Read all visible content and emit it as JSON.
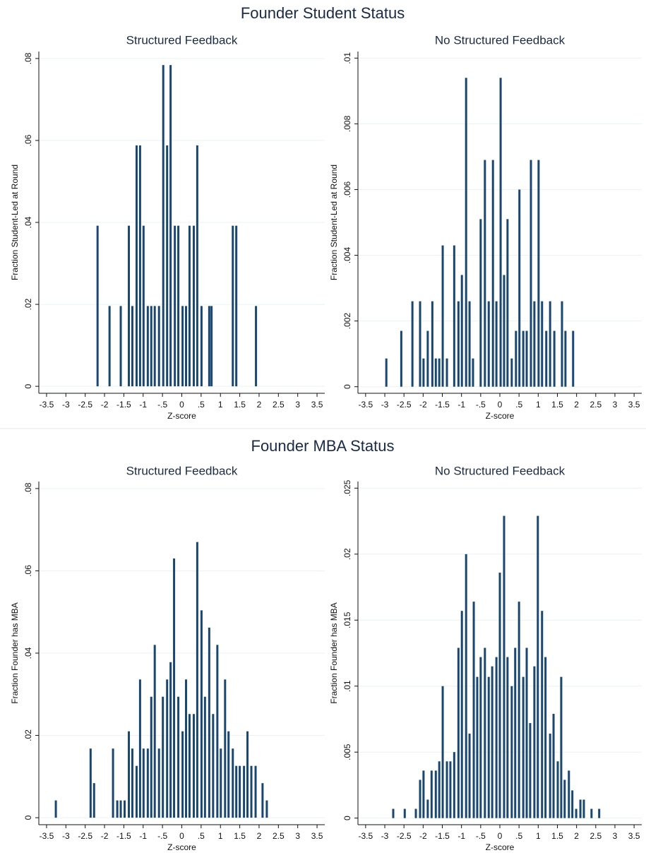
{
  "section_titles": [
    "Founder Student Status",
    "Founder MBA Status"
  ],
  "chart_data": [
    {
      "type": "bar",
      "title": "Structured Feedback",
      "xlabel": "Z-score",
      "ylabel": "Fraction Student-Led at Round",
      "color": "#1a476f",
      "grid": true,
      "x": [
        -2.18,
        -1.87,
        -1.58,
        -1.37,
        -1.28,
        -1.17,
        -1.08,
        -0.99,
        -0.88,
        -0.79,
        -0.7,
        -0.59,
        -0.48,
        -0.38,
        -0.29,
        -0.18,
        -0.09,
        0.02,
        0.11,
        0.2,
        0.31,
        0.4,
        0.51,
        0.71,
        0.77,
        1.32,
        1.41,
        1.92
      ],
      "values": [
        0.0392,
        0.0196,
        0.0196,
        0.0392,
        0.0196,
        0.0588,
        0.0588,
        0.0392,
        0.0196,
        0.0196,
        0.0196,
        0.0196,
        0.0784,
        0.0588,
        0.0784,
        0.0392,
        0.0392,
        0.0196,
        0.0196,
        0.0392,
        0.0392,
        0.0588,
        0.0196,
        0.0196,
        0.0196,
        0.0392,
        0.0392,
        0.0196
      ],
      "xlim": [
        -3.7,
        3.7
      ],
      "ylim": [
        -0.0017,
        0.0817
      ],
      "xticks": [
        -3.5,
        -3,
        -2.5,
        -2,
        -1.5,
        -1,
        {
          "value": -0.5,
          "label": "-.5"
        },
        0,
        {
          "value": 0.5,
          "label": ".5"
        },
        1,
        1.5,
        2,
        2.5,
        3,
        3.5
      ],
      "yticks": [
        0,
        {
          "value": 0.02,
          "label": ".02"
        },
        {
          "value": 0.04,
          "label": ".04"
        },
        {
          "value": 0.06,
          "label": ".06"
        },
        {
          "value": 0.08,
          "label": ".08"
        }
      ]
    },
    {
      "type": "bar",
      "title": "No Structured Feedback",
      "xlabel": "Z-score",
      "ylabel": "Fraction Student-Led at Round",
      "color": "#1a476f",
      "grid": true,
      "x": [
        -2.96,
        -2.57,
        -2.28,
        -2.08,
        -1.99,
        -1.88,
        -1.76,
        -1.67,
        -1.58,
        -1.49,
        -1.38,
        -1.19,
        -1.08,
        -0.99,
        -0.88,
        -0.79,
        -0.7,
        -0.5,
        -0.39,
        -0.29,
        -0.18,
        -0.09,
        0.02,
        0.11,
        0.2,
        0.31,
        0.42,
        0.51,
        0.61,
        0.7,
        0.81,
        0.9,
        1.01,
        1.1,
        1.21,
        1.31,
        1.42,
        1.62,
        1.71,
        1.91
      ],
      "values": [
        0.00086,
        0.0017,
        0.0026,
        0.0026,
        0.00086,
        0.0017,
        0.0026,
        0.00086,
        0.00086,
        0.0043,
        0.00086,
        0.0043,
        0.0026,
        0.0034,
        0.0094,
        0.0026,
        0.00086,
        0.0051,
        0.0069,
        0.0026,
        0.0069,
        0.0026,
        0.0094,
        0.0034,
        0.0051,
        0.00086,
        0.0017,
        0.006,
        0.0017,
        0.0017,
        0.0069,
        0.0026,
        0.0069,
        0.0026,
        0.0017,
        0.0026,
        0.0017,
        0.0026,
        0.0017,
        0.0017
      ],
      "xlim": [
        -3.7,
        3.7
      ],
      "ylim": [
        -0.0002,
        0.0102
      ],
      "xticks": [
        -3.5,
        -3,
        -2.5,
        -2,
        -1.5,
        -1,
        {
          "value": -0.5,
          "label": "-.5"
        },
        0,
        {
          "value": 0.5,
          "label": ".5"
        },
        1,
        1.5,
        2,
        2.5,
        3,
        3.5
      ],
      "yticks": [
        0,
        {
          "value": 0.002,
          "label": ".002"
        },
        {
          "value": 0.004,
          "label": ".004"
        },
        {
          "value": 0.006,
          "label": ".006"
        },
        {
          "value": 0.008,
          "label": ".008"
        },
        {
          "value": 0.01,
          "label": ".01"
        }
      ]
    },
    {
      "type": "bar",
      "title": "Structured Feedback",
      "xlabel": "Z-score",
      "ylabel": "Fraction Founder has MBA",
      "color": "#1a476f",
      "grid": true,
      "x": [
        -3.26,
        -2.36,
        -2.27,
        -1.78,
        -1.67,
        -1.58,
        -1.48,
        -1.37,
        -1.28,
        -1.17,
        -1.08,
        -0.99,
        -0.88,
        -0.79,
        -0.7,
        -0.59,
        -0.49,
        -0.38,
        -0.29,
        -0.2,
        -0.09,
        0.02,
        0.11,
        0.2,
        0.31,
        0.4,
        0.51,
        0.6,
        0.71,
        0.81,
        0.92,
        1.01,
        1.12,
        1.21,
        1.32,
        1.41,
        1.5,
        1.61,
        1.7,
        1.8,
        1.91,
        2.09,
        2.2
      ],
      "values": [
        0.0042,
        0.0168,
        0.0084,
        0.0168,
        0.0042,
        0.0042,
        0.0042,
        0.021,
        0.0168,
        0.0126,
        0.0336,
        0.0168,
        0.0168,
        0.0294,
        0.042,
        0.0168,
        0.0294,
        0.0336,
        0.0378,
        0.063,
        0.0294,
        0.021,
        0.0336,
        0.0252,
        0.0252,
        0.067,
        0.0504,
        0.0294,
        0.0462,
        0.0252,
        0.042,
        0.0168,
        0.0336,
        0.021,
        0.0168,
        0.0126,
        0.0126,
        0.0126,
        0.021,
        0.0126,
        0.0126,
        0.0084,
        0.0042
      ],
      "xlim": [
        -3.7,
        3.7
      ],
      "ylim": [
        -0.0017,
        0.0817
      ],
      "xticks": [
        -3.5,
        -3,
        -2.5,
        -2,
        -1.5,
        -1,
        {
          "value": -0.5,
          "label": "-.5"
        },
        0,
        {
          "value": 0.5,
          "label": ".5"
        },
        1,
        1.5,
        2,
        2.5,
        3,
        3.5
      ],
      "yticks": [
        0,
        {
          "value": 0.02,
          "label": ".02"
        },
        {
          "value": 0.04,
          "label": ".04"
        },
        {
          "value": 0.06,
          "label": ".06"
        },
        {
          "value": 0.08,
          "label": ".08"
        }
      ]
    },
    {
      "type": "bar",
      "title": "No Structured Feedback",
      "xlabel": "Z-score",
      "ylabel": "Fraction Founder has MBA",
      "color": "#1a476f",
      "grid": true,
      "x": [
        -2.78,
        -2.48,
        -2.19,
        -2.08,
        -1.99,
        -1.88,
        -1.78,
        -1.67,
        -1.58,
        -1.49,
        -1.38,
        -1.29,
        -1.19,
        -1.08,
        -0.99,
        -0.88,
        -0.79,
        -0.68,
        -0.59,
        -0.5,
        -0.39,
        -0.29,
        -0.2,
        -0.09,
        0,
        0.11,
        0.2,
        0.31,
        0.4,
        0.5,
        0.61,
        0.7,
        0.79,
        0.9,
        0.99,
        1.1,
        1.19,
        1.31,
        1.4,
        1.51,
        1.6,
        1.69,
        1.8,
        1.89,
        1.99,
        2.1,
        2.19,
        2.39,
        2.59
      ],
      "values": [
        0.0007,
        0.0007,
        0.0007,
        0.0029,
        0.0036,
        0.0014,
        0.0036,
        0.0036,
        0.0043,
        0.01,
        0.0043,
        0.0043,
        0.005,
        0.0129,
        0.0157,
        0.02,
        0.0064,
        0.0164,
        0.0107,
        0.0122,
        0.0129,
        0.0107,
        0.0115,
        0.0122,
        0.0186,
        0.0229,
        0.0122,
        0.01,
        0.0129,
        0.0164,
        0.0107,
        0.0129,
        0.0072,
        0.0115,
        0.0229,
        0.0157,
        0.0122,
        0.0064,
        0.0079,
        0.0043,
        0.0107,
        0.0029,
        0.0036,
        0.0021,
        0.0007,
        0.0014,
        0.0014,
        0.0007,
        0.0007
      ],
      "xlim": [
        -3.7,
        3.7
      ],
      "ylim": [
        -0.0005,
        0.0255
      ],
      "xticks": [
        -3.5,
        -3,
        -2.5,
        -2,
        -1.5,
        -1,
        {
          "value": -0.5,
          "label": "-.5"
        },
        0,
        {
          "value": 0.5,
          "label": ".5"
        },
        1,
        1.5,
        2,
        2.5,
        3,
        3.5
      ],
      "yticks": [
        0,
        {
          "value": 0.005,
          "label": ".005"
        },
        {
          "value": 0.01,
          "label": ".01"
        },
        {
          "value": 0.015,
          "label": ".015"
        },
        {
          "value": 0.02,
          "label": ".02"
        },
        {
          "value": 0.025,
          "label": ".025"
        }
      ]
    }
  ]
}
